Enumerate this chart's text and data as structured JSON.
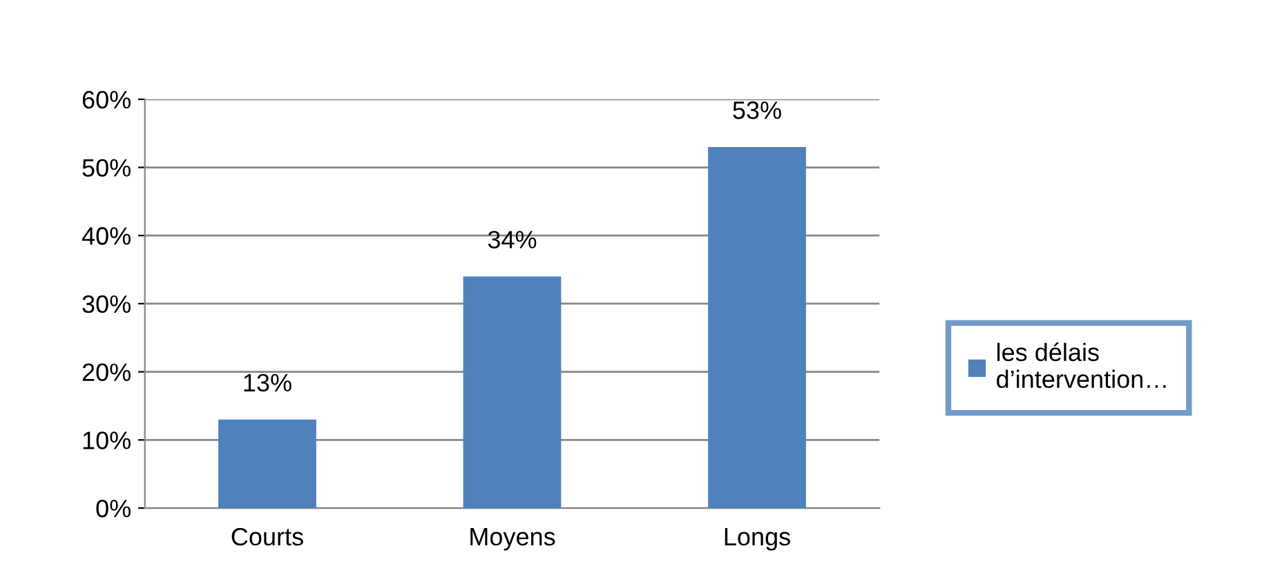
{
  "chart_data": {
    "type": "bar",
    "categories": [
      "Courts",
      "Moyens",
      "Longs"
    ],
    "series": [
      {
        "name": "les délais\nd’intervention…",
        "color": "#4f81bd",
        "values": [
          13,
          34,
          53
        ]
      }
    ],
    "ylim": [
      0,
      60
    ],
    "yticks": [
      {
        "value": 0,
        "label": "0%"
      },
      {
        "value": 10,
        "label": "10%"
      },
      {
        "value": 20,
        "label": "20%"
      },
      {
        "value": 30,
        "label": "30%"
      },
      {
        "value": 40,
        "label": "40%"
      },
      {
        "value": 50,
        "label": "50%"
      },
      {
        "value": 60,
        "label": "60%"
      }
    ],
    "value_labels": [
      "13%",
      "34%",
      "53%"
    ],
    "grid": "y",
    "legend": "right"
  }
}
